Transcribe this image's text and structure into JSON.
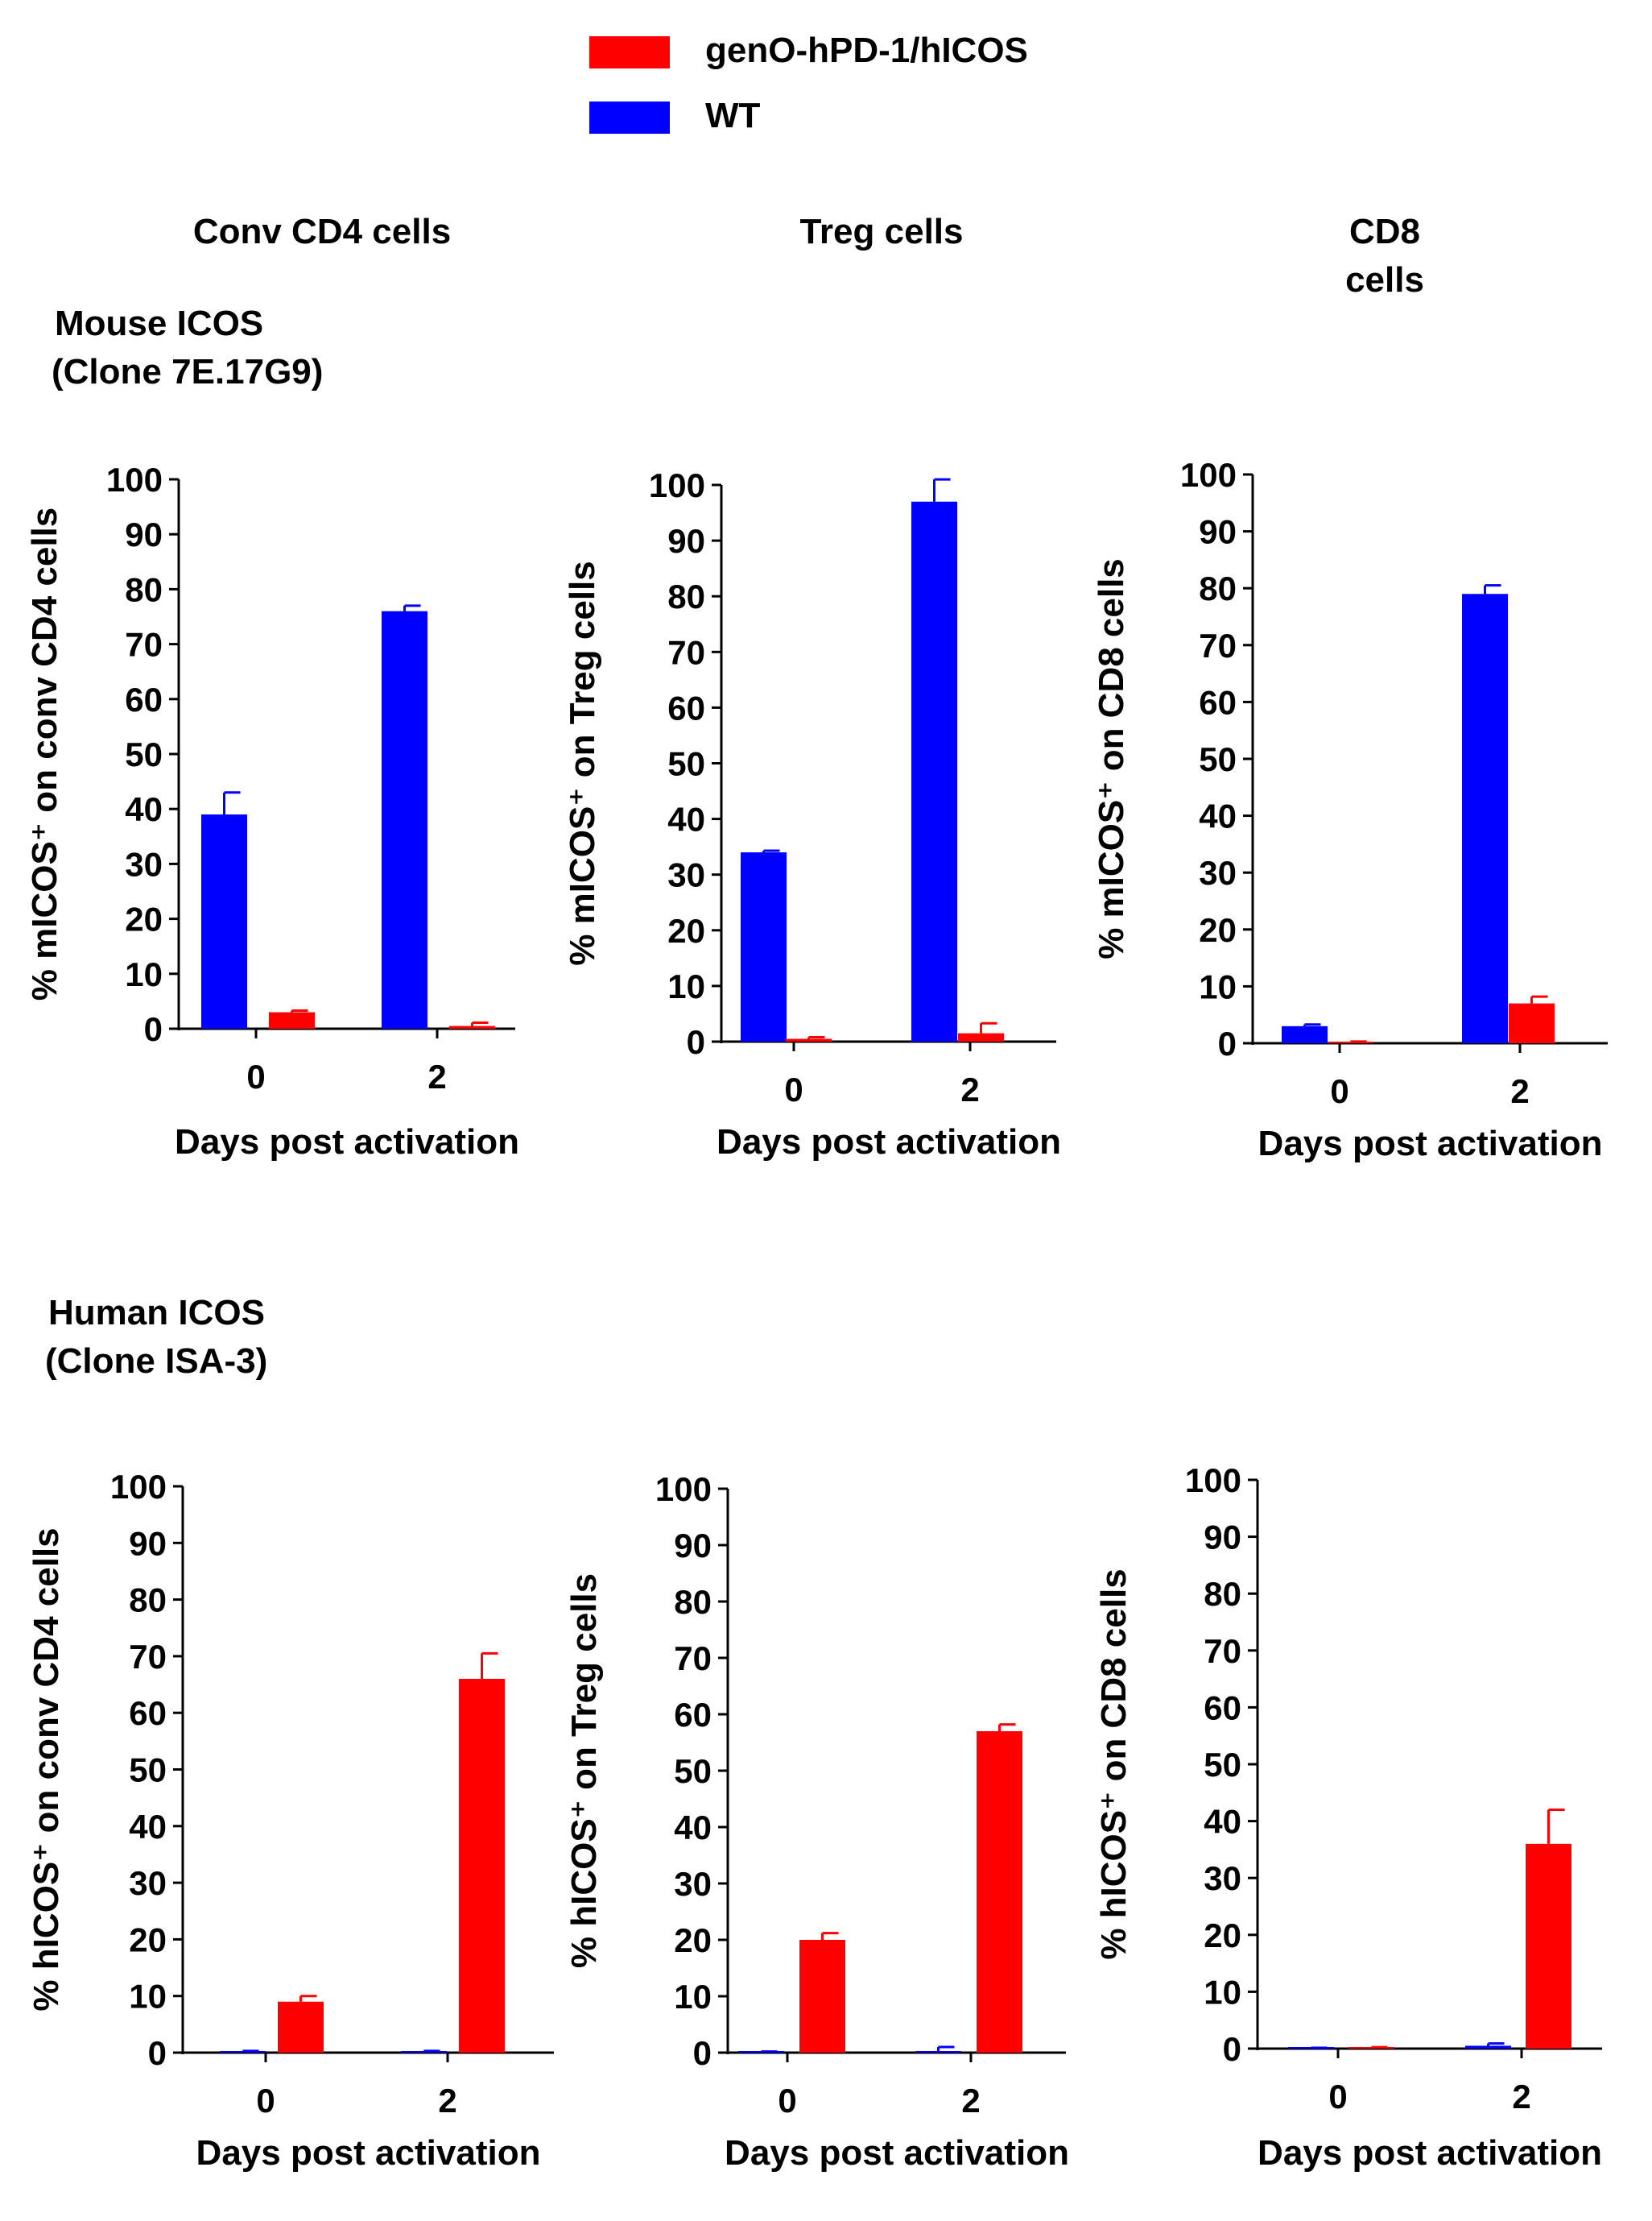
{
  "legend": {
    "items": [
      {
        "label": "genO-hPD-1/hICOS",
        "color": "#ff0000"
      },
      {
        "label": "WT",
        "color": "#0000ff"
      }
    ]
  },
  "column_titles": [
    "Conv CD4 cells",
    "Treg cells",
    "CD8",
    "cells"
  ],
  "row_titles": {
    "mouse": [
      "Mouse ICOS",
      "(Clone 7E.17G9)"
    ],
    "human": [
      "Human ICOS",
      "(Clone ISA-3)"
    ]
  },
  "colors": {
    "wt": "#0000ff",
    "geno": "#ff0000"
  },
  "chart_data": [
    {
      "type": "bar",
      "id": "mouse-cd4",
      "categories": [
        "0",
        "2"
      ],
      "xlabel": "Days post activation",
      "ylabel": "% mICOS⁺ on conv CD4 cells",
      "ylim": [
        0,
        100
      ],
      "yticks": [
        0,
        10,
        20,
        30,
        40,
        50,
        60,
        70,
        80,
        90,
        100
      ],
      "series": [
        {
          "name": "WT",
          "values": [
            39,
            76
          ],
          "errors": [
            4,
            1
          ]
        },
        {
          "name": "genO-hPD-1/hICOS",
          "values": [
            3,
            0.5
          ],
          "errors": [
            0.3,
            0.6
          ]
        }
      ]
    },
    {
      "type": "bar",
      "id": "mouse-treg",
      "categories": [
        "0",
        "2"
      ],
      "xlabel": "Days post activation",
      "ylabel": "% mICOS⁺ on Treg cells",
      "ylim": [
        0,
        100
      ],
      "yticks": [
        0,
        10,
        20,
        30,
        40,
        50,
        60,
        70,
        80,
        90,
        100
      ],
      "series": [
        {
          "name": "WT",
          "values": [
            34,
            97
          ],
          "errors": [
            0.3,
            4
          ]
        },
        {
          "name": "genO-hPD-1/hICOS",
          "values": [
            0.5,
            1.5
          ],
          "errors": [
            0.3,
            1.8
          ]
        }
      ]
    },
    {
      "type": "bar",
      "id": "mouse-cd8",
      "categories": [
        "0",
        "2"
      ],
      "xlabel": "Days post activation",
      "ylabel": "% mICOS⁺ on CD8 cells",
      "ylim": [
        0,
        100
      ],
      "yticks": [
        0,
        10,
        20,
        30,
        40,
        50,
        60,
        70,
        80,
        90,
        100
      ],
      "series": [
        {
          "name": "WT",
          "values": [
            3,
            79
          ],
          "errors": [
            0.3,
            1.5
          ]
        },
        {
          "name": "genO-hPD-1/hICOS",
          "values": [
            0.2,
            7
          ],
          "errors": [
            0.1,
            1.2
          ]
        }
      ]
    },
    {
      "type": "bar",
      "id": "human-cd4",
      "categories": [
        "0",
        "2"
      ],
      "xlabel": "Days post activation",
      "ylabel": "% hICOS⁺ on conv CD4 cells",
      "ylim": [
        0,
        100
      ],
      "yticks": [
        0,
        10,
        20,
        30,
        40,
        50,
        60,
        70,
        80,
        90,
        100
      ],
      "series": [
        {
          "name": "WT",
          "values": [
            0.2,
            0.2
          ],
          "errors": [
            0.1,
            0.1
          ]
        },
        {
          "name": "genO-hPD-1/hICOS",
          "values": [
            9,
            66
          ],
          "errors": [
            1,
            4.5
          ]
        }
      ]
    },
    {
      "type": "bar",
      "id": "human-treg",
      "categories": [
        "0",
        "2"
      ],
      "xlabel": "Days post activation",
      "ylabel": "% hICOS⁺ on Treg cells",
      "ylim": [
        0,
        100
      ],
      "yticks": [
        0,
        10,
        20,
        30,
        40,
        50,
        60,
        70,
        80,
        90,
        100
      ],
      "series": [
        {
          "name": "WT",
          "values": [
            0.1,
            0.2
          ],
          "errors": [
            0.1,
            0.8
          ]
        },
        {
          "name": "genO-hPD-1/hICOS",
          "values": [
            20,
            57
          ],
          "errors": [
            1.2,
            1.2
          ]
        }
      ]
    },
    {
      "type": "bar",
      "id": "human-cd8",
      "categories": [
        "0",
        "2"
      ],
      "xlabel": "Days post activation",
      "ylabel": "% hICOS⁺ on CD8 cells",
      "ylim": [
        0,
        100
      ],
      "yticks": [
        0,
        10,
        20,
        30,
        40,
        50,
        60,
        70,
        80,
        90,
        100
      ],
      "series": [
        {
          "name": "WT",
          "values": [
            0.1,
            0.5
          ],
          "errors": [
            0.05,
            0.4
          ]
        },
        {
          "name": "genO-hPD-1/hICOS",
          "values": [
            0.2,
            36
          ],
          "errors": [
            0.05,
            6
          ]
        }
      ]
    }
  ]
}
